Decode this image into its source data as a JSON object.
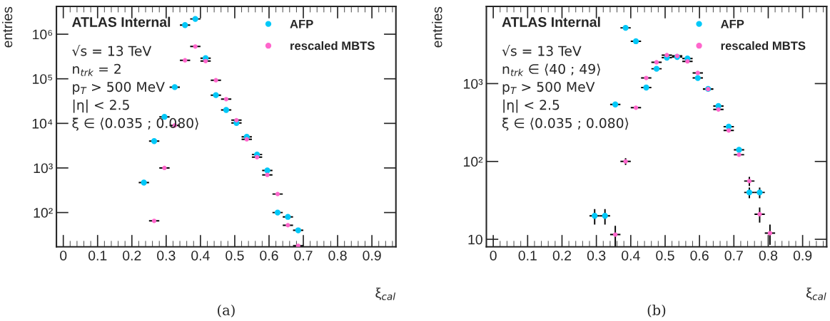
{
  "chart_data": [
    {
      "type": "scatter",
      "xlabel": "ξ$_{cal}$",
      "ylabel": "entries",
      "log": "y",
      "xlim": [
        -0.02,
        0.97
      ],
      "ylim": [
        17,
        4200000
      ],
      "xticks": [
        0,
        0.1,
        0.2,
        0.3,
        0.4,
        0.5,
        0.6,
        0.7,
        0.8,
        0.9
      ],
      "yticks": [
        {
          "value": 100,
          "label": "10²"
        },
        {
          "value": 1000,
          "label": "10³"
        },
        {
          "value": 10000,
          "label": "10⁴"
        },
        {
          "value": 100000,
          "label": "10⁵"
        },
        {
          "value": 1000000,
          "label": "10⁶"
        }
      ],
      "legend": "top right",
      "marker": "circle",
      "grid": false,
      "annotations": [
        "ATLAS Internal",
        "√s = 13 TeV",
        "n$_{trk}$ = 2",
        "p$_{T}$ > 500 MeV",
        "|η| < 2.5",
        "ξ ∈ ⟨0.035 ; 0.080⟩",
        "(a)"
      ],
      "series": [
        {
          "name": "AFP",
          "color": "#00c8f8",
          "x": [
            0.235,
            0.265,
            0.295,
            0.325,
            0.355,
            0.385,
            0.415,
            0.445,
            0.475,
            0.505,
            0.535,
            0.565,
            0.595,
            0.625,
            0.655,
            0.685
          ],
          "values": [
            470,
            4000,
            14000,
            65000,
            1600000,
            2200000,
            290000,
            43000,
            20000,
            10200,
            5000,
            2000,
            880,
            100,
            80,
            40
          ],
          "xerrors": [
            0.015,
            0.015,
            0.015,
            0.015,
            0.015,
            0.015,
            0.015,
            0.015,
            0.015,
            0.015,
            0.015,
            0.015,
            0.015,
            0.015,
            0.015,
            0.015
          ]
        },
        {
          "name": "rescaled MBTS",
          "color": "#ff66cc",
          "x": [
            0.265,
            0.295,
            0.325,
            0.355,
            0.385,
            0.415,
            0.445,
            0.475,
            0.505,
            0.535,
            0.565,
            0.595,
            0.625,
            0.655,
            0.685
          ],
          "values": [
            65,
            1000,
            9000,
            260000,
            530000,
            250000,
            93000,
            35000,
            11800,
            4400,
            1750,
            700,
            260,
            52,
            18
          ],
          "xerrors": [
            0.015,
            0.015,
            0.015,
            0.015,
            0.015,
            0.015,
            0.015,
            0.015,
            0.015,
            0.015,
            0.015,
            0.015,
            0.015,
            0.015,
            0.015
          ]
        }
      ]
    },
    {
      "type": "scatter",
      "xlabel": "ξ$_{cal}$",
      "ylabel": "entries",
      "log": "y",
      "xlim": [
        -0.02,
        0.97
      ],
      "ylim": [
        8,
        9800
      ],
      "xticks": [
        0,
        0.1,
        0.2,
        0.3,
        0.4,
        0.5,
        0.6,
        0.7,
        0.8,
        0.9
      ],
      "yticks": [
        10,
        {
          "value": 100,
          "label": "10²"
        },
        {
          "value": 1000,
          "label": "10³"
        }
      ],
      "legend": "top right",
      "marker": "circle",
      "grid": false,
      "annotations": [
        "ATLAS Internal",
        "√s = 13 TeV",
        "n$_{trk}$ ∈ ⟨40 ; 49⟩",
        "p$_{T}$ > 500 MeV",
        "|η| < 2.5",
        "ξ ∈ ⟨0.035 ; 0.080⟩",
        "(b)"
      ],
      "series": [
        {
          "name": "AFP",
          "color": "#00c8f8",
          "x": [
            0.295,
            0.325,
            0.355,
            0.385,
            0.415,
            0.445,
            0.475,
            0.505,
            0.535,
            0.565,
            0.595,
            0.625,
            0.655,
            0.685,
            0.715,
            0.745,
            0.775
          ],
          "values": [
            20,
            20,
            540,
            5200,
            3500,
            890,
            1550,
            2150,
            2200,
            2100,
            1180,
            855,
            515,
            280,
            141,
            40,
            40
          ],
          "xerrors": [
            0.015,
            0.015,
            0.015,
            0.015,
            0.015,
            0.015,
            0.015,
            0.015,
            0.015,
            0.015,
            0.015,
            0.015,
            0.015,
            0.015,
            0.015,
            0.015,
            0.015
          ],
          "errors": [
            4.5,
            4.5,
            null,
            null,
            null,
            null,
            null,
            null,
            null,
            null,
            null,
            null,
            null,
            null,
            null,
            6.3,
            6.3
          ]
        },
        {
          "name": "rescaled MBTS",
          "color": "#ff66cc",
          "x": [
            0.355,
            0.385,
            0.415,
            0.445,
            0.475,
            0.505,
            0.535,
            0.565,
            0.595,
            0.625,
            0.655,
            0.685,
            0.715,
            0.745,
            0.775,
            0.805
          ],
          "values": [
            11.5,
            100,
            490,
            1180,
            1880,
            2320,
            2270,
            1930,
            1370,
            850,
            465,
            250,
            122,
            56,
            21,
            12
          ],
          "xerrors": [
            0.015,
            0.015,
            0.015,
            0.015,
            0.015,
            0.015,
            0.015,
            0.015,
            0.015,
            0.015,
            0.015,
            0.015,
            0.015,
            0.015,
            0.015,
            0.015
          ],
          "errors": [
            3.4,
            10,
            null,
            null,
            null,
            null,
            null,
            null,
            null,
            null,
            null,
            null,
            null,
            7.5,
            4.6,
            3.5
          ]
        }
      ]
    }
  ]
}
